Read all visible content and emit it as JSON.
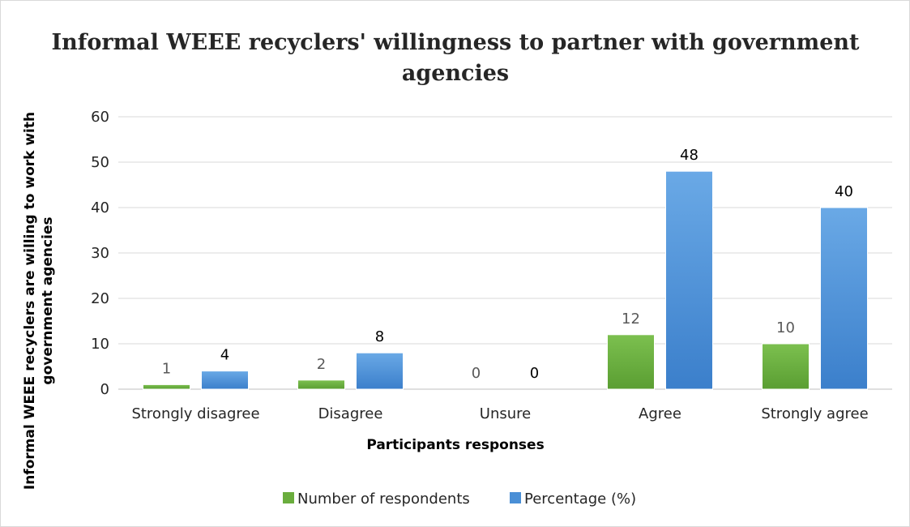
{
  "chart_data": {
    "type": "bar",
    "title_lines": [
      "Informal WEEE recyclers' willingness to partner with government",
      "agencies"
    ],
    "xlabel": "Participants responses",
    "ylabel_lines": [
      "Informal WEEE recyclers are willing to work with",
      "government agencies"
    ],
    "categories": [
      "Strongly disagree",
      "Disagree",
      "Unsure",
      "Agree",
      "Strongly agree"
    ],
    "ylim": [
      0,
      60
    ],
    "yticks": [
      "0",
      "10",
      "20",
      "30",
      "40",
      "50",
      "60"
    ],
    "grid": true,
    "legend_position": "bottom",
    "series": [
      {
        "name": "Number of respondents",
        "values": [
          1,
          2,
          0,
          12,
          10
        ],
        "labels": [
          "1",
          "2",
          "0",
          "12",
          "10"
        ],
        "color": "#6aad3d",
        "label_color": "#595959"
      },
      {
        "name": "Percentage (%)",
        "values": [
          4,
          8,
          0,
          48,
          40
        ],
        "labels": [
          "4",
          "8",
          "0",
          "48",
          "40"
        ],
        "color": "#4a8fd6",
        "label_color": "#000000"
      }
    ]
  }
}
